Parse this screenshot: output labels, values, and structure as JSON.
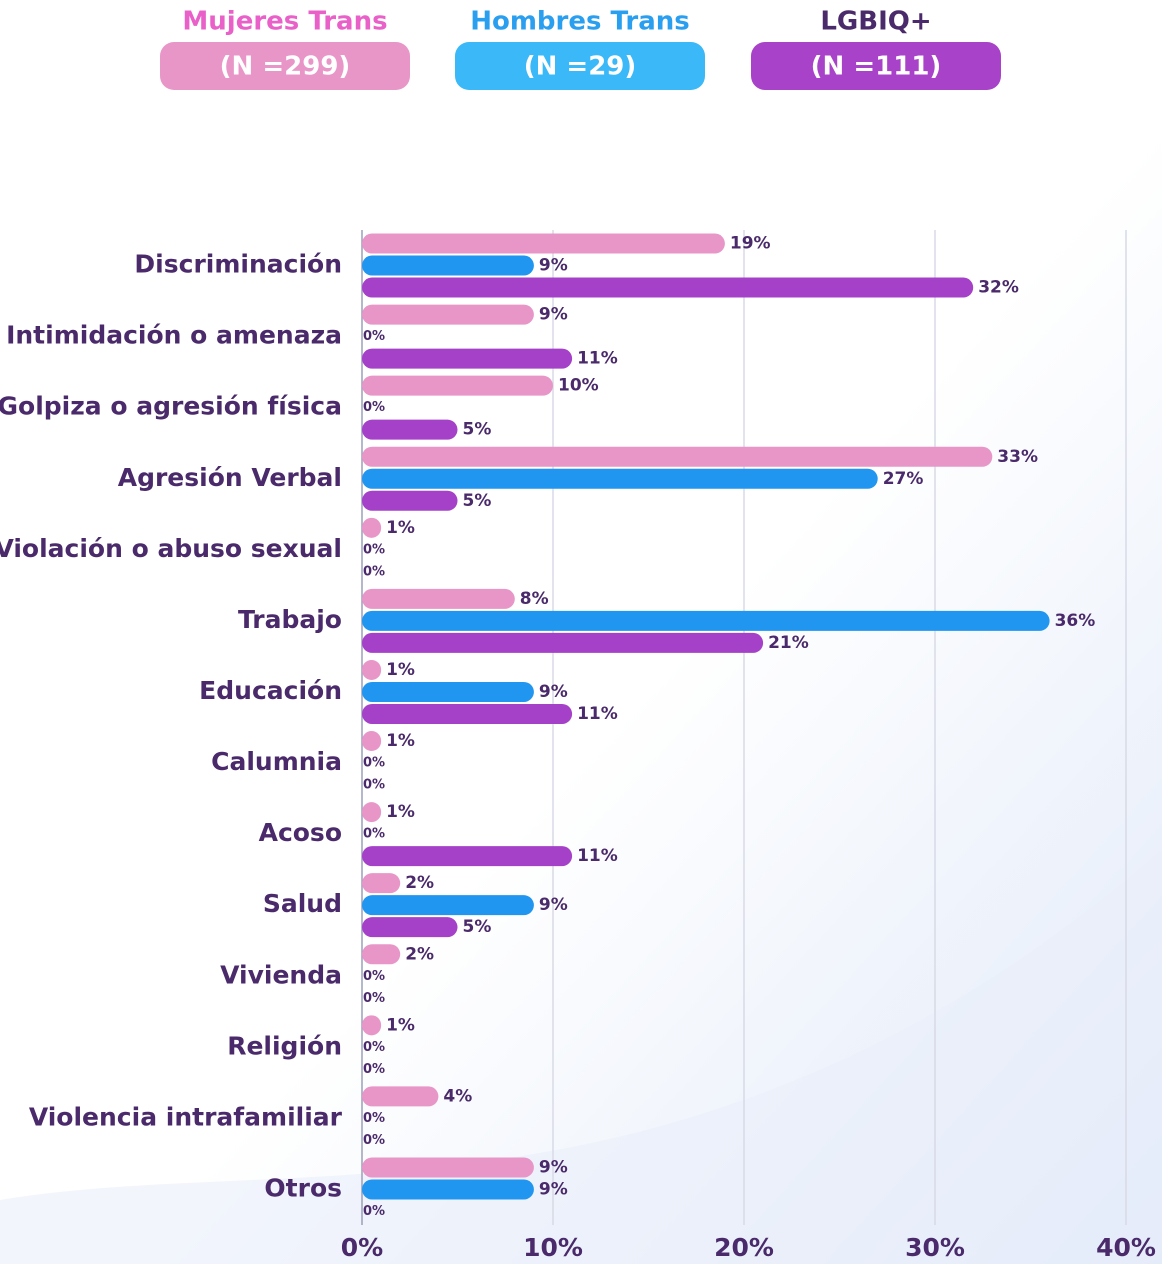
{
  "chart_data": {
    "type": "hbar",
    "categories": [
      "Discriminación",
      "Intimidación o amenaza",
      "Golpiza o agresión física",
      "Agresión Verbal",
      "Violación o abuso sexual",
      "Trabajo",
      "Educación",
      "Calumnia",
      "Acoso",
      "Salud",
      "Vivienda",
      "Religión",
      "Violencia intrafamiliar",
      "Otros"
    ],
    "series": [
      {
        "name": "Mujeres Trans",
        "n_label": "(N =299)",
        "color": "#e896c8",
        "title_color": "#e860c8",
        "badge_color": "#e896c8",
        "values": [
          19,
          9,
          10,
          33,
          1,
          8,
          1,
          1,
          1,
          2,
          2,
          1,
          4,
          9
        ],
        "value_labels": [
          "19%",
          "9%",
          "10%",
          "33%",
          "1%",
          "8%",
          "1%",
          "1%",
          "1%",
          "2%",
          "2%",
          "1%",
          "4%",
          "9%"
        ]
      },
      {
        "name": "Hombres Trans",
        "n_label": "(N =29)",
        "color": "#2196f0",
        "title_color": "#2a9ff0",
        "badge_color": "#3ab8f8",
        "values": [
          9,
          0,
          0,
          27,
          0,
          36,
          9,
          0,
          0,
          9,
          0,
          0,
          0,
          9
        ],
        "value_labels": [
          "9%",
          "0%",
          "0%",
          "27%",
          "0%",
          "36%",
          "9%",
          "0%",
          "0%",
          "9%",
          "0%",
          "0%",
          "0%",
          "9%"
        ]
      },
      {
        "name": "LGBIQ+",
        "n_label": "(N =111)",
        "color": "#a540c8",
        "title_color": "#4a2a6a",
        "badge_color": "#a842c8",
        "values": [
          32,
          11,
          5,
          5,
          0,
          21,
          11,
          0,
          11,
          5,
          0,
          0,
          0,
          0
        ],
        "value_labels": [
          "32%",
          "11%",
          "5%",
          "5%",
          "0%",
          "21%",
          "11%",
          "0%",
          "11%",
          "5%",
          "0%",
          "0%",
          "0%",
          "0%"
        ]
      }
    ],
    "xlim": [
      0,
      40
    ],
    "xticks": [
      {
        "value": 0,
        "label": "0%"
      },
      {
        "value": 10,
        "label": "10%"
      },
      {
        "value": 20,
        "label": "20%"
      },
      {
        "value": 30,
        "label": "30%"
      },
      {
        "value": 40,
        "label": "40%"
      }
    ],
    "grid": true
  }
}
